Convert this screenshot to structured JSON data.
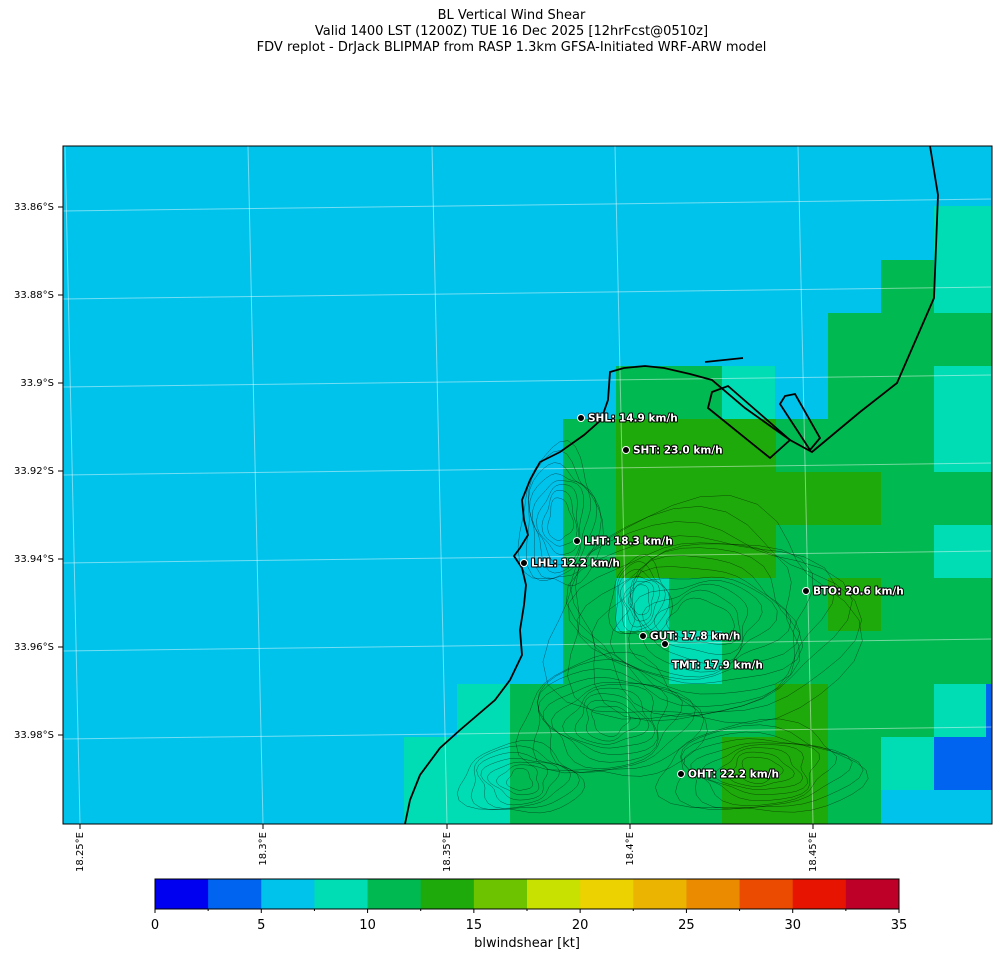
{
  "header": {
    "title": "BL Vertical Wind Shear",
    "valid_line": "Valid 1400 LST (1200Z) TUE 16 Dec 2025 [12hrFcst@0510z]",
    "source_line": "FDV replot - DrJack BLIPMAP from RASP 1.3km GFSA-Initiated WRF-ARW model"
  },
  "map": {
    "lat_labels": [
      "33.86°S",
      "33.88°S",
      "33.9°S",
      "33.92°S",
      "33.94°S",
      "33.96°S",
      "33.98°S"
    ],
    "lon_labels": [
      "18.25°E",
      "18.3°E",
      "18.35°E",
      "18.4°E",
      "18.45°E"
    ],
    "stations": [
      {
        "code": "SHL",
        "label": "SHL: 14.9 km/h",
        "value_kmh": 14.9
      },
      {
        "code": "SHT",
        "label": "SHT: 23.0 km/h",
        "value_kmh": 23.0
      },
      {
        "code": "LHT",
        "label": "LHT: 18.3 km/h",
        "value_kmh": 18.3
      },
      {
        "code": "LHL",
        "label": "LHL: 12.2 km/h",
        "value_kmh": 12.2
      },
      {
        "code": "BTO",
        "label": "BTO: 20.6 km/h",
        "value_kmh": 20.6
      },
      {
        "code": "GUT",
        "label": "GUT: 17.8 km/h",
        "value_kmh": 17.8
      },
      {
        "code": "TMT",
        "label": "TMT: 17.9 km/h",
        "value_kmh": 17.9
      },
      {
        "code": "OHT",
        "label": "OHT: 22.2 km/h",
        "value_kmh": 22.2
      }
    ]
  },
  "colorbar": {
    "label": "blwindshear [kt]",
    "ticks": [
      "0",
      "5",
      "10",
      "15",
      "20",
      "25",
      "30",
      "35"
    ],
    "colors": [
      "#0000f0",
      "#0064f0",
      "#00c3eb",
      "#00dcb4",
      "#00b950",
      "#1eaa0a",
      "#6ec300",
      "#c8e100",
      "#ebd200",
      "#ebb400",
      "#eb8c00",
      "#eb4b00",
      "#e61400",
      "#be0028"
    ]
  }
}
